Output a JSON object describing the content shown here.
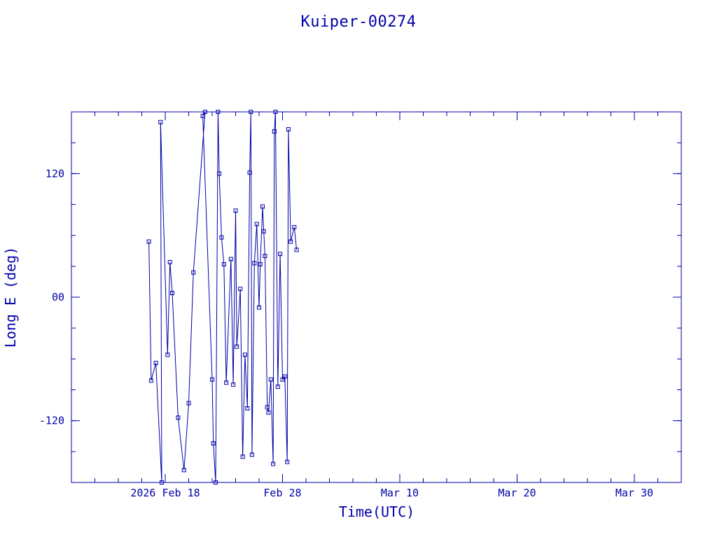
{
  "colors": {
    "ink": "#0000A8",
    "background": "#FFFFFF"
  },
  "chart_data": {
    "type": "line",
    "title": "Kuiper-00274",
    "xlabel": "Time(UTC)",
    "ylabel": "Long E (deg)",
    "x_unit": "days",
    "x_axis_dates": [
      "2026 Feb 18",
      "Feb 28",
      "Mar 10",
      "Mar 20",
      "Mar 30"
    ],
    "xlim": [
      "2026-02-10",
      "2026-04-03"
    ],
    "ylim": [
      -180,
      180
    ],
    "grid": false,
    "marker": "square",
    "x_ticks": [
      {
        "date": "2026-02-18",
        "label": "2026 Feb 18"
      },
      {
        "date": "2026-02-28",
        "label": "Feb 28"
      },
      {
        "date": "2026-03-10",
        "label": "Mar 10"
      },
      {
        "date": "2026-03-20",
        "label": "Mar 20"
      },
      {
        "date": "2026-03-30",
        "label": "Mar 30"
      }
    ],
    "y_ticks": [
      {
        "value": 120,
        "label": "120"
      },
      {
        "value": 0,
        "label": "00"
      },
      {
        "value": -120,
        "label": "-120"
      }
    ],
    "series": [
      {
        "points": [
          [
            "2026-02-16T14:24",
            54
          ],
          [
            "2026-02-16T19:12",
            -81
          ],
          [
            "2026-02-17T04:48",
            -64
          ],
          [
            "2026-02-17T16:48",
            -180
          ],
          [
            "2026-02-17T14:24",
            170
          ],
          [
            "2026-02-18T04:48",
            -56
          ],
          [
            "2026-02-18T09:36",
            34
          ],
          [
            "2026-02-18T14:24",
            4
          ],
          [
            "2026-02-19T02:24",
            -117
          ],
          [
            "2026-02-19T14:24",
            -168
          ],
          [
            "2026-02-20T00:00",
            -103
          ],
          [
            "2026-02-20T09:36",
            24
          ],
          [
            "2026-02-21T09:36",
            180
          ],
          [
            "2026-02-21T04:48",
            176
          ],
          [
            "2026-02-22T00:00",
            -80
          ],
          [
            "2026-02-22T02:24",
            -142
          ],
          [
            "2026-02-22T07:12",
            -180
          ],
          [
            "2026-02-22T12:00",
            180
          ],
          [
            "2026-02-22T14:24",
            120
          ],
          [
            "2026-02-22T19:12",
            58
          ],
          [
            "2026-02-23T00:00",
            32
          ],
          [
            "2026-02-23T04:48",
            -83
          ],
          [
            "2026-02-23T14:24",
            37
          ],
          [
            "2026-02-23T19:12",
            -85
          ],
          [
            "2026-02-24T00:00",
            84
          ],
          [
            "2026-02-24T02:24",
            -48
          ],
          [
            "2026-02-24T09:36",
            8
          ],
          [
            "2026-02-24T14:24",
            -155
          ],
          [
            "2026-02-24T19:12",
            -56
          ],
          [
            "2026-02-25T00:00",
            -108
          ],
          [
            "2026-02-25T04:48",
            121
          ],
          [
            "2026-02-25T07:12",
            180
          ],
          [
            "2026-02-25T09:36",
            -153
          ],
          [
            "2026-02-25T14:24",
            33
          ],
          [
            "2026-02-25T19:12",
            71
          ],
          [
            "2026-02-26T00:00",
            -10
          ],
          [
            "2026-02-26T02:24",
            32
          ],
          [
            "2026-02-26T07:12",
            88
          ],
          [
            "2026-02-26T09:36",
            64
          ],
          [
            "2026-02-26T12:00",
            40
          ],
          [
            "2026-02-26T16:48",
            -107
          ],
          [
            "2026-02-26T19:12",
            -112
          ],
          [
            "2026-02-27T00:00",
            -80
          ],
          [
            "2026-02-27T04:48",
            -162
          ],
          [
            "2026-02-27T07:12",
            161
          ],
          [
            "2026-02-27T09:36",
            180
          ],
          [
            "2026-02-27T14:24",
            -87
          ],
          [
            "2026-02-27T19:12",
            42
          ],
          [
            "2026-02-28T00:00",
            -80
          ],
          [
            "2026-02-28T04:48",
            -77
          ],
          [
            "2026-02-28T09:36",
            -160
          ],
          [
            "2026-02-28T12:00",
            163
          ],
          [
            "2026-02-28T16:48",
            54
          ],
          [
            "2026-02-29T00:00",
            68
          ],
          [
            "2026-02-29T04:48",
            46
          ]
        ]
      }
    ]
  }
}
